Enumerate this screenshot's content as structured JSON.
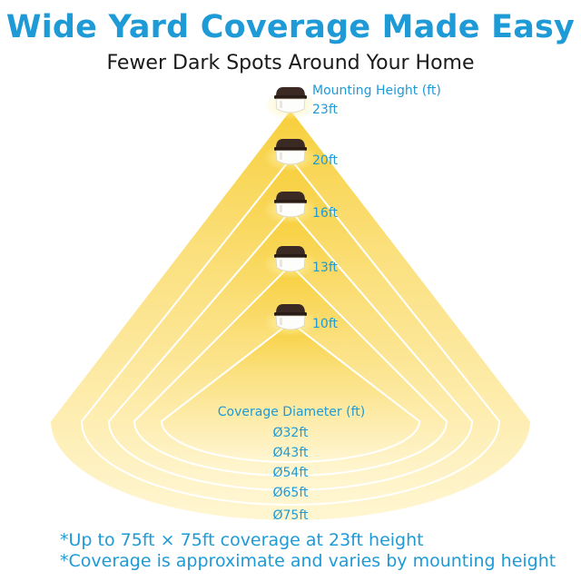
{
  "header": {
    "title": "Wide Yard Coverage Made Easy",
    "subtitle": "Fewer Dark Spots Around Your Home"
  },
  "mounting": {
    "label": "Mounting Height (ft)",
    "heights": [
      "23ft",
      "20ft",
      "16ft",
      "13ft",
      "10ft"
    ]
  },
  "coverage": {
    "label": "Coverage Diameter (ft)",
    "diameters": [
      "Ø32ft",
      "Ø43ft",
      "Ø54ft",
      "Ø65ft",
      "Ø75ft"
    ]
  },
  "notes": [
    "*Up to 75ft × 75ft coverage at 23ft height",
    "*Coverage is approximate and varies by mounting height"
  ],
  "colors": {
    "accent": "#1e9ad6",
    "light_glow": "#fbe48a",
    "fixture_body": "#3b2a23"
  }
}
